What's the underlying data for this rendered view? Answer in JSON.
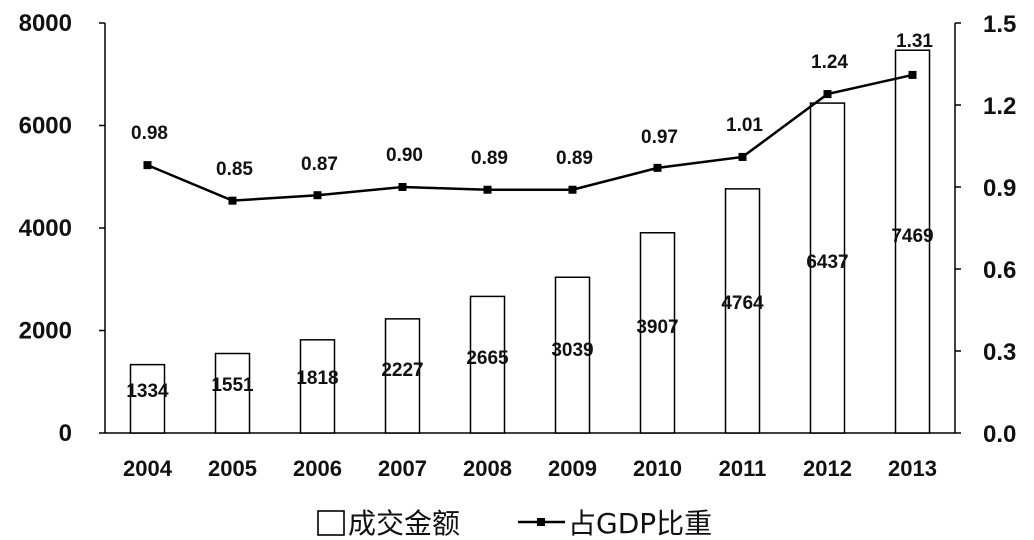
{
  "chart_data": {
    "type": "bar+line",
    "categories": [
      "2004",
      "2005",
      "2006",
      "2007",
      "2008",
      "2009",
      "2010",
      "2011",
      "2012",
      "2013"
    ],
    "series": [
      {
        "name": "成交金额",
        "type": "bar",
        "axis": "left",
        "values": [
          1334,
          1551,
          1818,
          2227,
          2665,
          3039,
          3907,
          4764,
          6437,
          7469
        ],
        "labels": [
          "1334",
          "1551",
          "1818",
          "2227",
          "2665",
          "3039",
          "3907",
          "4764",
          "6437",
          "7469"
        ]
      },
      {
        "name": "占GDP比重",
        "type": "line",
        "axis": "right",
        "values": [
          0.98,
          0.85,
          0.87,
          0.9,
          0.89,
          0.89,
          0.97,
          1.01,
          1.24,
          1.31
        ],
        "labels": [
          "0.98",
          "0.85",
          "0.87",
          "0.90",
          "0.89",
          "0.89",
          "0.97",
          "1.01",
          "1.24",
          "1.31"
        ]
      }
    ],
    "left_axis": {
      "range": [
        0,
        8000
      ],
      "ticks": [
        "0",
        "2000",
        "4000",
        "6000",
        "8000"
      ]
    },
    "right_axis": {
      "range": [
        0,
        1.5
      ],
      "ticks": [
        "0.0",
        "0.3",
        "0.6",
        "0.9",
        "1.2",
        "1.5"
      ]
    },
    "grid": false,
    "legend_position": "bottom",
    "colors": {
      "bar_fill": "#ffffff",
      "bar_stroke": "#000000",
      "line": "#000000"
    }
  }
}
